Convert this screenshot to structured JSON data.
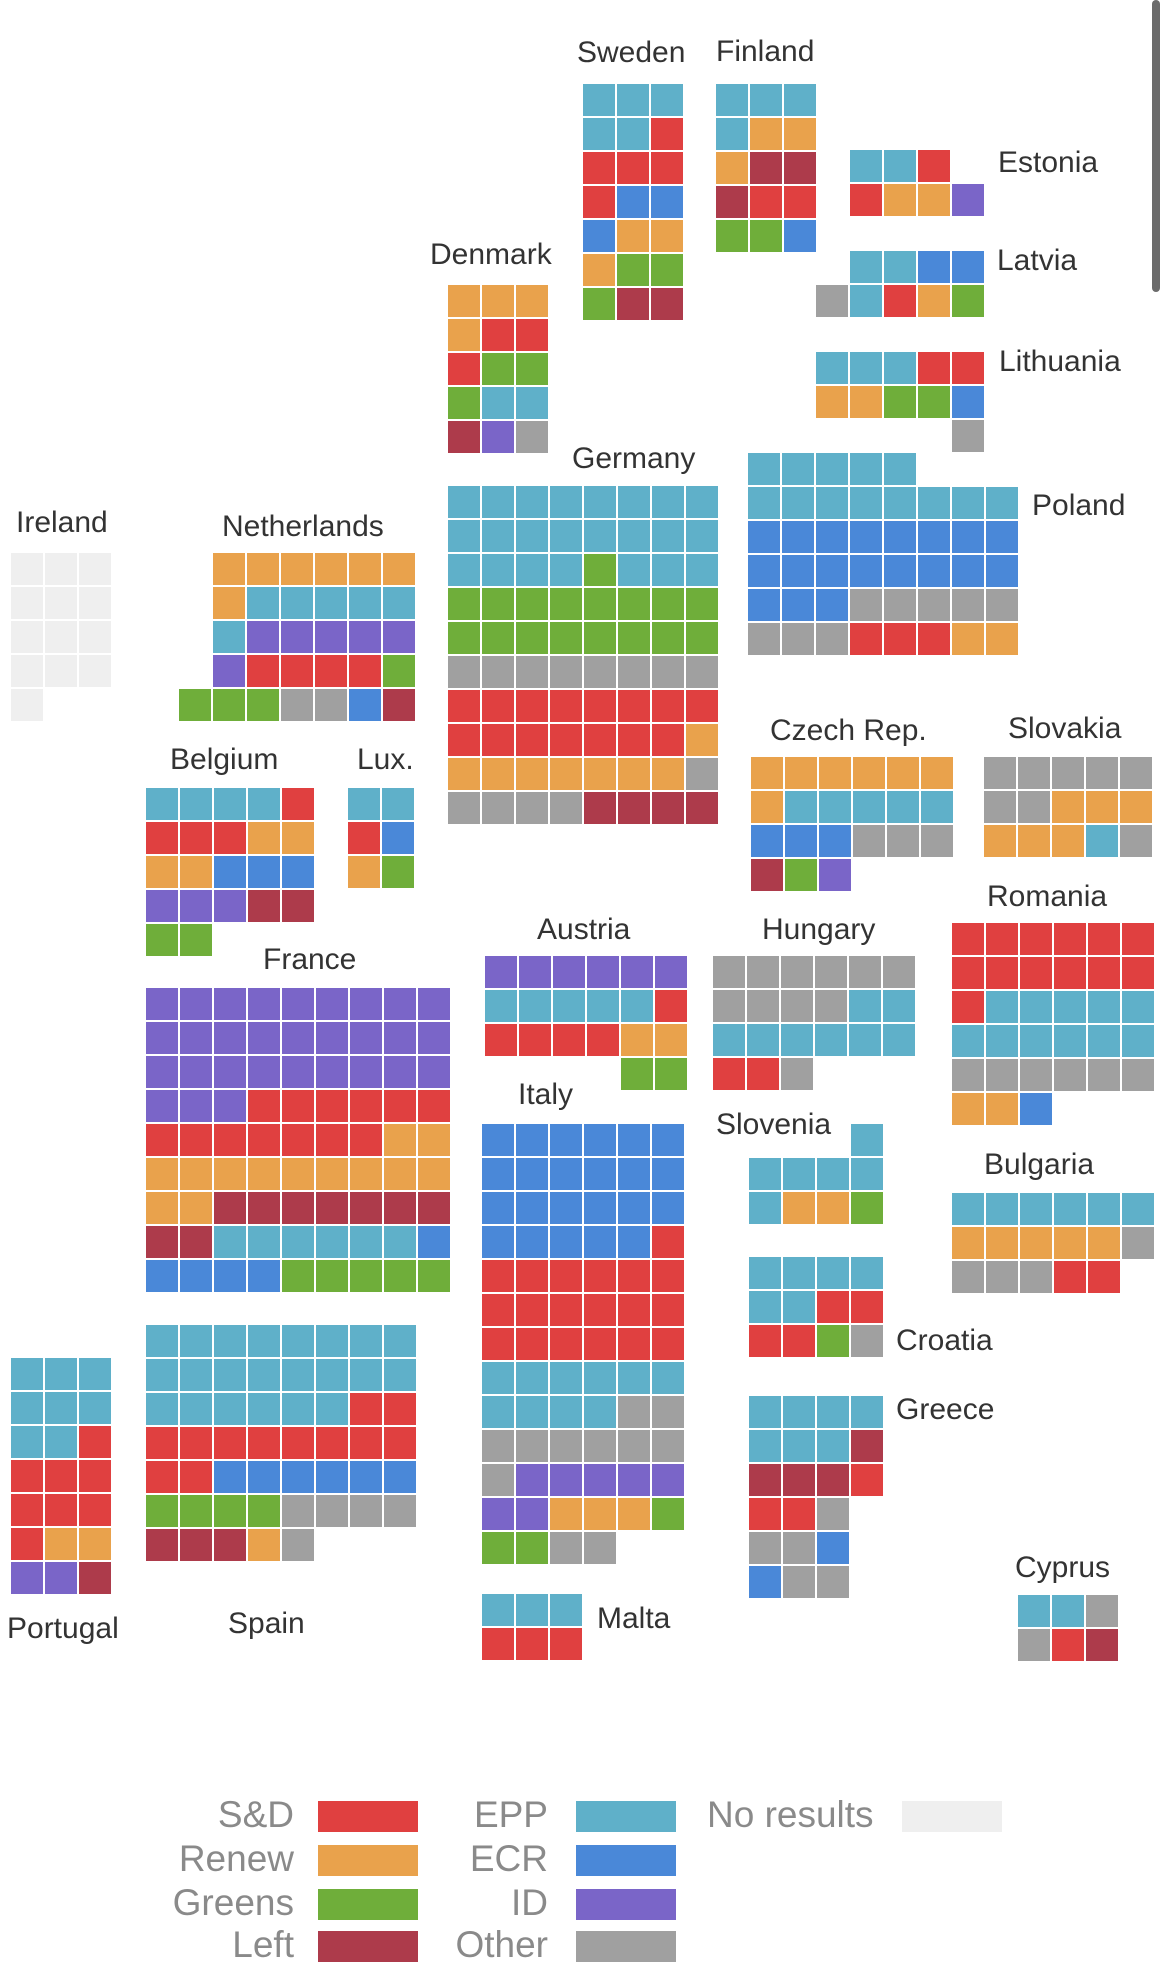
{
  "chart_data": {
    "type": "waffle-map",
    "title": "",
    "unit": "one square per seat",
    "groups": [
      {
        "key": "SD",
        "label": "S&D",
        "color": "#e04040"
      },
      {
        "key": "RE",
        "label": "Renew",
        "color": "#e9a24c"
      },
      {
        "key": "GR",
        "label": "Greens",
        "color": "#6fae3a"
      },
      {
        "key": "LE",
        "label": "Left",
        "color": "#ad3b4b"
      },
      {
        "key": "EPP",
        "label": "EPP",
        "color": "#5fb0c9"
      },
      {
        "key": "ECR",
        "label": "ECR",
        "color": "#4a88d8"
      },
      {
        "key": "ID",
        "label": "ID",
        "color": "#7a65c8"
      },
      {
        "key": "OT",
        "label": "Other",
        "color": "#a0a0a0"
      },
      {
        "key": "NR",
        "label": "No results",
        "color": "#efefef"
      }
    ],
    "countries": [
      {
        "name": "Sweden",
        "rows": [
          "EPP EPP EPP",
          "EPP EPP SD",
          "SD SD SD",
          "SD ECR ECR",
          "ECR RE RE",
          "RE GR GR",
          "GR LE LE"
        ]
      },
      {
        "name": "Finland",
        "rows": [
          "EPP EPP EPP",
          "EPP RE RE",
          "RE LE LE",
          "LE SD SD",
          "GR GR ECR"
        ]
      },
      {
        "name": "Estonia",
        "rows": [
          "EPP EPP SD -",
          "SD RE RE ID"
        ]
      },
      {
        "name": "Latvia",
        "rows": [
          "- EPP EPP ECR ECR",
          "OT EPP SD RE GR"
        ]
      },
      {
        "name": "Lithuania",
        "rows": [
          "EPP EPP EPP SD SD",
          "RE RE GR GR ECR",
          "- - - - OT"
        ]
      },
      {
        "name": "Denmark",
        "rows": [
          "RE RE RE",
          "RE SD SD",
          "SD GR GR",
          "GR EPP EPP",
          "LE ID OT"
        ]
      },
      {
        "name": "Germany",
        "rows": [
          "EPP EPP EPP EPP EPP EPP EPP EPP",
          "EPP EPP EPP EPP EPP EPP EPP EPP",
          "EPP EPP EPP EPP GR EPP EPP EPP",
          "GR GR GR GR GR GR GR GR",
          "GR GR GR GR GR GR GR GR",
          "OT OT OT OT OT OT OT OT",
          "SD SD SD SD SD SD SD SD",
          "SD SD SD SD SD SD SD RE",
          "RE RE RE RE RE RE RE OT",
          "OT OT OT OT LE LE LE LE"
        ]
      },
      {
        "name": "Poland",
        "rows": [
          "EPP EPP EPP EPP EPP - - -",
          "EPP EPP EPP EPP EPP EPP EPP EPP",
          "ECR ECR ECR ECR ECR ECR ECR ECR",
          "ECR ECR ECR ECR ECR ECR ECR ECR",
          "ECR ECR ECR OT OT OT OT OT",
          "OT OT OT SD SD SD RE RE"
        ]
      },
      {
        "name": "Ireland",
        "rows": [
          "NR NR NR",
          "NR NR NR",
          "NR NR NR",
          "NR NR NR",
          "NR - -"
        ]
      },
      {
        "name": "Netherlands",
        "rows": [
          "- RE RE RE RE RE RE",
          "- RE EPP EPP EPP EPP EPP",
          "- EPP ID ID ID ID ID",
          "- ID SD SD SD SD GR",
          "GR GR GR OT OT ECR LE"
        ]
      },
      {
        "name": "Belgium",
        "rows": [
          "EPP EPP EPP EPP SD",
          "SD SD SD RE RE",
          "RE RE ECR ECR ECR",
          "ID ID ID LE LE",
          "GR GR - - -"
        ]
      },
      {
        "name": "Lux.",
        "rows": [
          "EPP EPP",
          "SD ECR",
          "RE GR"
        ]
      },
      {
        "name": "Czech Rep.",
        "rows": [
          "RE RE RE RE RE RE",
          "RE EPP EPP EPP EPP EPP",
          "ECR ECR ECR OT OT OT",
          "LE GR ID - - -"
        ]
      },
      {
        "name": "Slovakia",
        "rows": [
          "OT OT OT OT OT",
          "OT OT RE RE RE",
          "RE RE RE EPP OT"
        ]
      },
      {
        "name": "Austria",
        "rows": [
          "ID ID ID ID ID ID",
          "EPP EPP EPP EPP EPP SD",
          "SD SD SD SD RE RE",
          "- - - - GR GR"
        ]
      },
      {
        "name": "Hungary",
        "rows": [
          "OT OT OT OT OT OT",
          "OT OT OT OT EPP EPP",
          "EPP EPP EPP EPP EPP EPP",
          "SD SD OT - - -"
        ]
      },
      {
        "name": "Romania",
        "rows": [
          "SD SD SD SD SD SD",
          "SD SD SD SD SD SD",
          "SD EPP EPP EPP EPP EPP",
          "EPP EPP EPP EPP EPP EPP",
          "OT OT OT OT OT OT",
          "RE RE ECR - - -"
        ]
      },
      {
        "name": "France",
        "rows": [
          "ID ID ID ID ID ID ID ID ID",
          "ID ID ID ID ID ID ID ID ID",
          "ID ID ID ID ID ID ID ID ID",
          "ID ID ID SD SD SD SD SD SD",
          "SD SD SD SD SD SD SD RE RE",
          "RE RE RE RE RE RE RE RE RE",
          "RE RE LE LE LE LE LE LE LE",
          "LE LE EPP EPP EPP EPP EPP EPP ECR",
          "ECR ECR ECR ECR GR GR GR GR GR"
        ]
      },
      {
        "name": "Italy",
        "rows": [
          "ECR ECR ECR ECR ECR ECR",
          "ECR ECR ECR ECR ECR ECR",
          "ECR ECR ECR ECR ECR ECR",
          "ECR ECR ECR ECR ECR SD",
          "SD SD SD SD SD SD",
          "SD SD SD SD SD SD",
          "SD SD SD SD SD SD",
          "EPP EPP EPP EPP EPP EPP",
          "EPP EPP EPP EPP OT OT",
          "OT OT OT OT OT OT",
          "OT ID ID ID ID ID",
          "ID ID RE RE RE GR",
          "GR GR OT OT - -"
        ]
      },
      {
        "name": "Slovenia",
        "rows": [
          "- - - EPP",
          "EPP EPP EPP EPP",
          "EPP RE RE GR"
        ]
      },
      {
        "name": "Bulgaria",
        "rows": [
          "EPP EPP EPP EPP EPP EPP",
          "RE RE RE RE RE OT",
          "OT OT OT SD SD -"
        ]
      },
      {
        "name": "Croatia",
        "rows": [
          "EPP EPP EPP EPP",
          "EPP EPP SD SD",
          "SD SD GR OT"
        ]
      },
      {
        "name": "Greece",
        "rows": [
          "EPP EPP EPP EPP",
          "EPP EPP EPP LE",
          "LE LE LE SD",
          "SD SD OT -",
          "OT OT ECR -",
          "ECR OT OT -"
        ]
      },
      {
        "name": "Portugal",
        "rows": [
          "EPP EPP EPP",
          "EPP EPP EPP",
          "EPP EPP SD",
          "SD SD SD",
          "SD SD SD",
          "SD RE RE",
          "ID ID LE"
        ]
      },
      {
        "name": "Spain",
        "rows": [
          "EPP EPP EPP EPP EPP EPP EPP EPP",
          "EPP EPP EPP EPP EPP EPP EPP EPP",
          "EPP EPP EPP EPP EPP EPP SD SD",
          "SD SD SD SD SD SD SD SD",
          "SD SD ECR ECR ECR ECR ECR ECR",
          "GR GR GR GR OT OT OT OT",
          "LE LE LE RE OT - - -"
        ]
      },
      {
        "name": "Malta",
        "rows": [
          "EPP EPP EPP",
          "SD SD SD"
        ]
      },
      {
        "name": "Cyprus",
        "rows": [
          "EPP EPP OT",
          "OT SD LE"
        ]
      }
    ]
  }
}
